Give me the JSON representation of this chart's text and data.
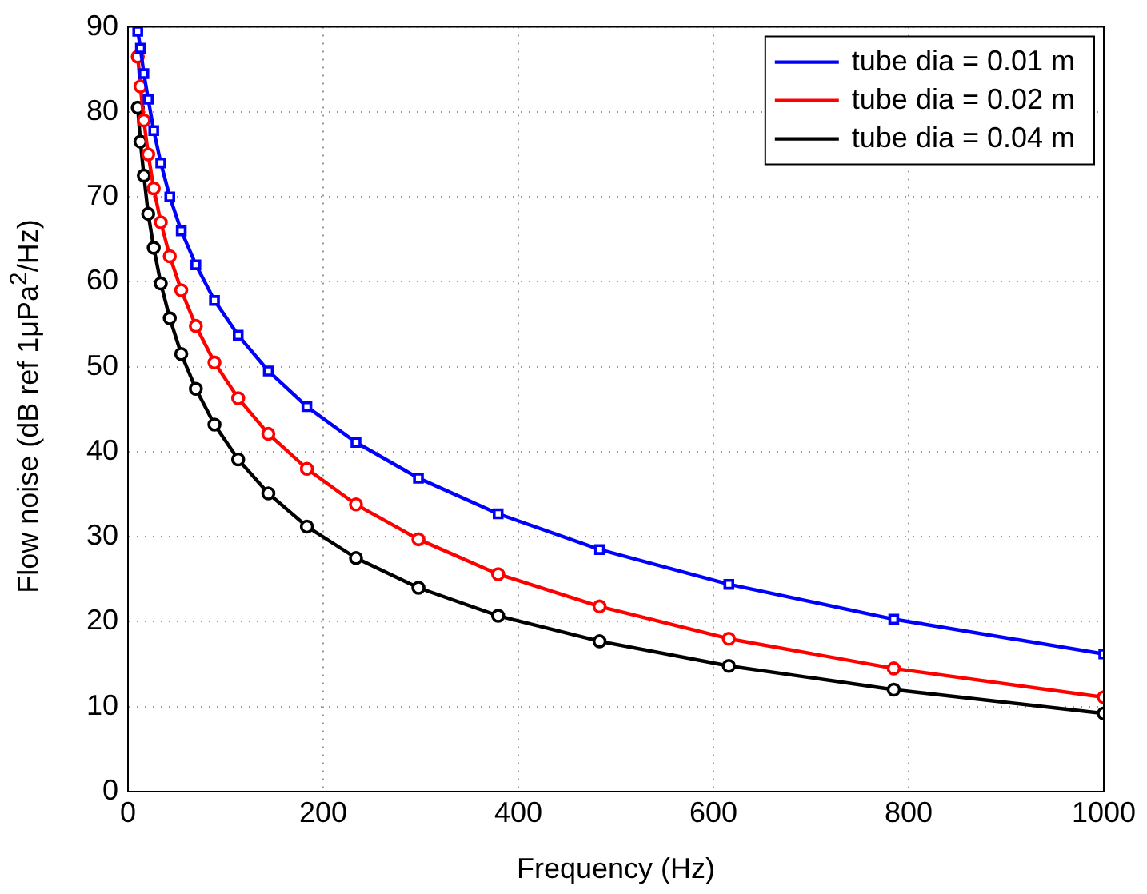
{
  "chart_data": {
    "type": "line",
    "xlabel": "Frequency (Hz)",
    "ylabel": "Flow noise (dB ref 1μPa$^{2}$/Hz)",
    "x": [
      10,
      12.74,
      16.24,
      20.69,
      26.37,
      33.6,
      42.81,
      54.56,
      69.52,
      88.59,
      112.9,
      143.8,
      183.3,
      233.6,
      297.6,
      379.3,
      483.3,
      615.8,
      784.8,
      1000
    ],
    "series": [
      {
        "name": "tube dia = 0.01 m",
        "color": "#0000ff",
        "marker": "square",
        "values": [
          89.5,
          87.5,
          84.5,
          81.5,
          77.8,
          74,
          70,
          66,
          62,
          57.8,
          53.7,
          49.5,
          45.3,
          41.1,
          36.9,
          32.7,
          28.5,
          24.4,
          20.3,
          16.2
        ]
      },
      {
        "name": "tube dia = 0.02 m",
        "color": "#ff0000",
        "marker": "circle",
        "values": [
          86.5,
          83,
          79,
          75,
          71,
          67,
          63,
          59,
          54.8,
          50.5,
          46.3,
          42.1,
          38,
          33.8,
          29.7,
          25.6,
          21.8,
          18,
          14.5,
          11.1
        ]
      },
      {
        "name": "tube dia = 0.04 m",
        "color": "#000000",
        "marker": "circle",
        "values": [
          80.5,
          76.5,
          72.5,
          68,
          64,
          59.8,
          55.7,
          51.5,
          47.4,
          43.2,
          39.1,
          35.1,
          31.2,
          27.5,
          24,
          20.7,
          17.7,
          14.8,
          12,
          9.2
        ]
      }
    ],
    "xlim": [
      0,
      1000
    ],
    "xticks": [
      0,
      200,
      400,
      600,
      800,
      1000
    ],
    "ylim": [
      0,
      90
    ],
    "yticks": [
      0,
      10,
      20,
      30,
      40,
      50,
      60,
      70,
      80,
      90
    ],
    "grid": true,
    "legend": "top right",
    "line_style": "solid"
  }
}
